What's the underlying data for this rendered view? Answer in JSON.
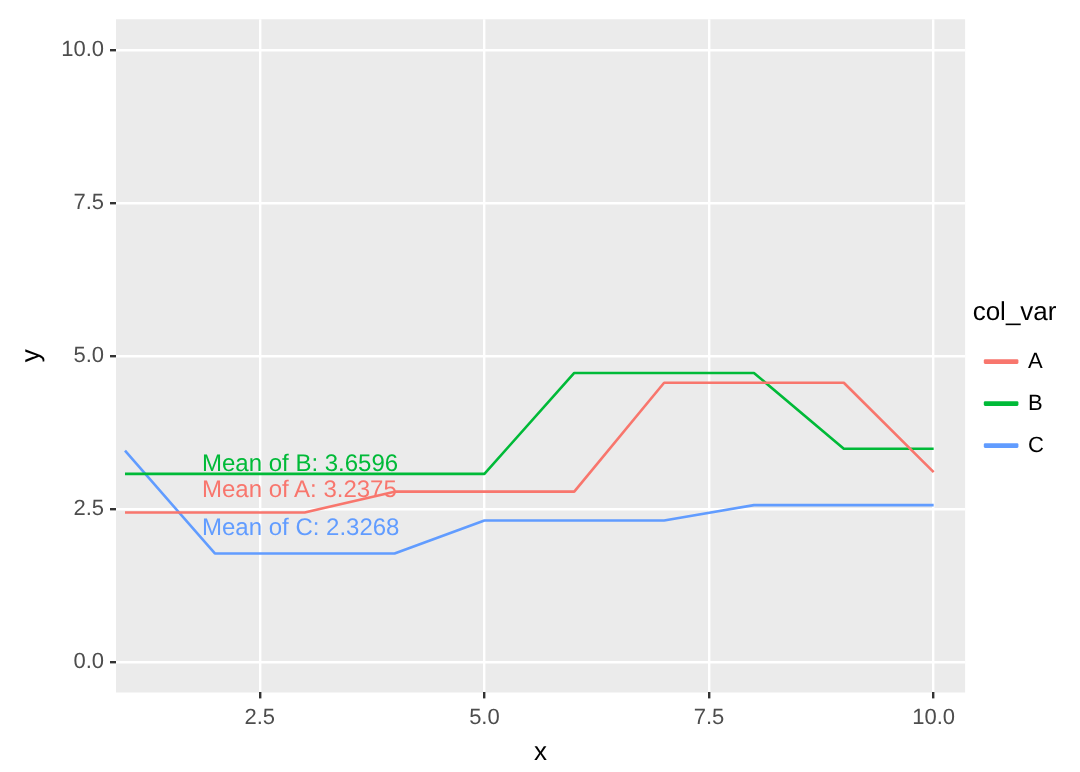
{
  "chart_data": {
    "type": "line",
    "xlabel": "x",
    "ylabel": "y",
    "legend_title": "col_var",
    "x": [
      1,
      2,
      3,
      4,
      5,
      6,
      7,
      8,
      9,
      10
    ],
    "series": [
      {
        "name": "A",
        "color": "#f8766d",
        "values": [
          2.44,
          2.44,
          2.44,
          2.78,
          2.78,
          2.78,
          4.56,
          4.56,
          4.56,
          3.1
        ]
      },
      {
        "name": "B",
        "color": "#00ba38",
        "values": [
          3.07,
          3.07,
          3.07,
          3.07,
          3.07,
          4.72,
          4.72,
          4.72,
          3.48,
          3.48
        ]
      },
      {
        "name": "C",
        "color": "#619cff",
        "values": [
          3.45,
          1.77,
          1.77,
          1.77,
          2.31,
          2.31,
          2.31,
          2.56,
          2.56,
          2.56
        ]
      }
    ],
    "annotations": [
      "Mean of A: 3.2375",
      "Mean of B: 3.6596",
      "Mean of C: 2.3268"
    ],
    "xlim": [
      0.9,
      10.35
    ],
    "ylim": [
      -0.5,
      10.5
    ],
    "xticks": [
      {
        "value": 2.5,
        "label": "2.5"
      },
      {
        "value": 5,
        "label": "5.0"
      },
      {
        "value": 7.5,
        "label": "7.5"
      },
      {
        "value": 10,
        "label": "10.0"
      }
    ],
    "yticks": [
      {
        "value": 0,
        "label": "0.0"
      },
      {
        "value": 2.5,
        "label": "2.5"
      },
      {
        "value": 5,
        "label": "5.0"
      },
      {
        "value": 7.5,
        "label": "7.5"
      },
      {
        "value": 10,
        "label": "10.0"
      }
    ],
    "grid": true,
    "legend": "right",
    "marker": "none",
    "line_style": "solid"
  }
}
